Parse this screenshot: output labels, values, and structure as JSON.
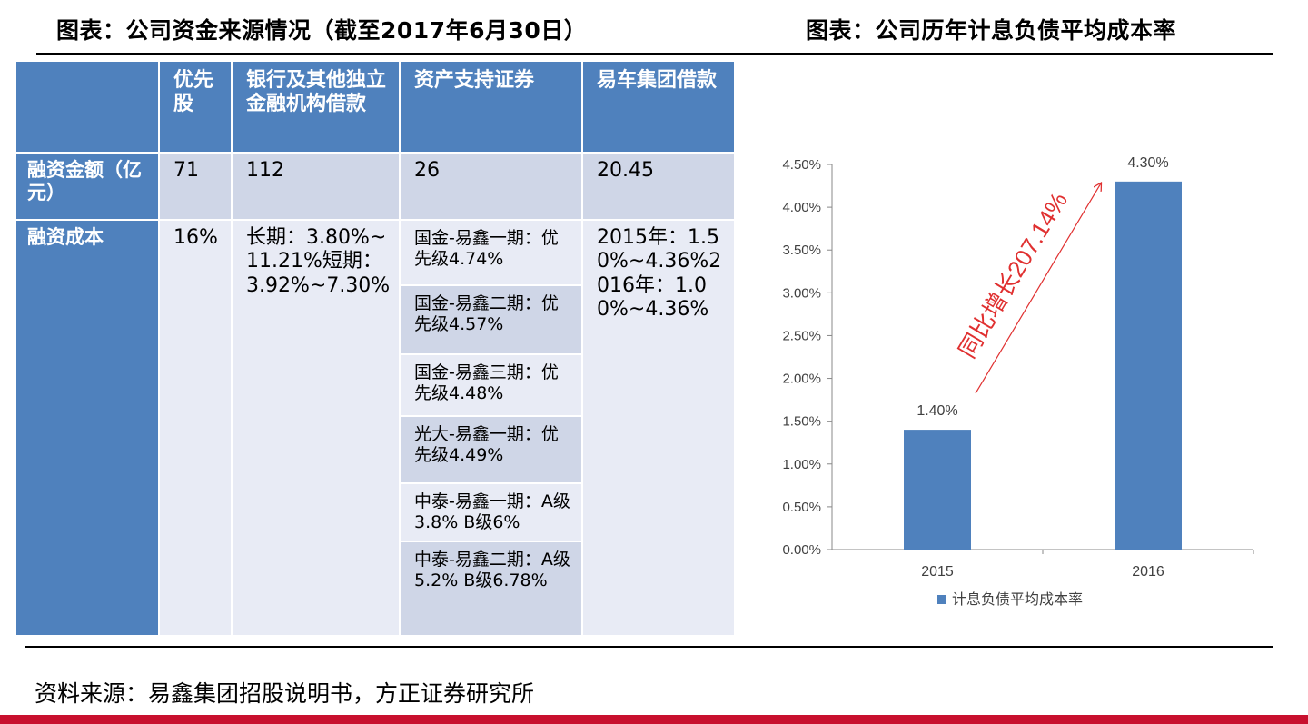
{
  "header": {
    "left_title": "图表：公司资金来源情况（截至2017年6月30日）",
    "right_title": "图表：公司历年计息负债平均成本率"
  },
  "table": {
    "columns": [
      "",
      "优先股",
      "银行及其他独立金融机构借款",
      "资产支持证券",
      "易车集团借款"
    ],
    "row_amount": {
      "label": "融资金额（亿元）",
      "values": [
        "71",
        "112",
        "26",
        "20.45"
      ]
    },
    "row_cost": {
      "label": "融资成本",
      "preferred": "16%",
      "bank": "长期：3.80%~11.21%短期：3.92%~7.30%",
      "abs_items": [
        "国金-易鑫一期：优先级4.74%",
        "国金-易鑫二期：优先级4.57%",
        "国金-易鑫三期：优先级4.48%",
        "光大-易鑫一期：优先级4.49%",
        "中泰-易鑫一期：A级3.8% B级6%",
        "中泰-易鑫二期：A级5.2% B级6.78%"
      ],
      "yiche": "2015年：1.50%~4.36%2016年：1.00%~4.36%"
    }
  },
  "chart_data": {
    "type": "bar",
    "categories": [
      "2015",
      "2016"
    ],
    "series": [
      {
        "name": "计息负债平均成本率",
        "values": [
          1.4,
          4.3
        ],
        "color": "#4f81bd"
      }
    ],
    "data_labels": [
      "1.40%",
      "4.30%"
    ],
    "ylim": [
      0,
      4.5
    ],
    "yticks": [
      "0.00%",
      "0.50%",
      "1.00%",
      "1.50%",
      "2.00%",
      "2.50%",
      "3.00%",
      "3.50%",
      "4.00%",
      "4.50%"
    ],
    "annotation": {
      "text": "同比增长207.14%",
      "color": "#e03030"
    },
    "legend_position": "bottom",
    "grid": false
  },
  "footer": {
    "source": "资料来源：易鑫集团招股说明书，方正证券研究所"
  }
}
